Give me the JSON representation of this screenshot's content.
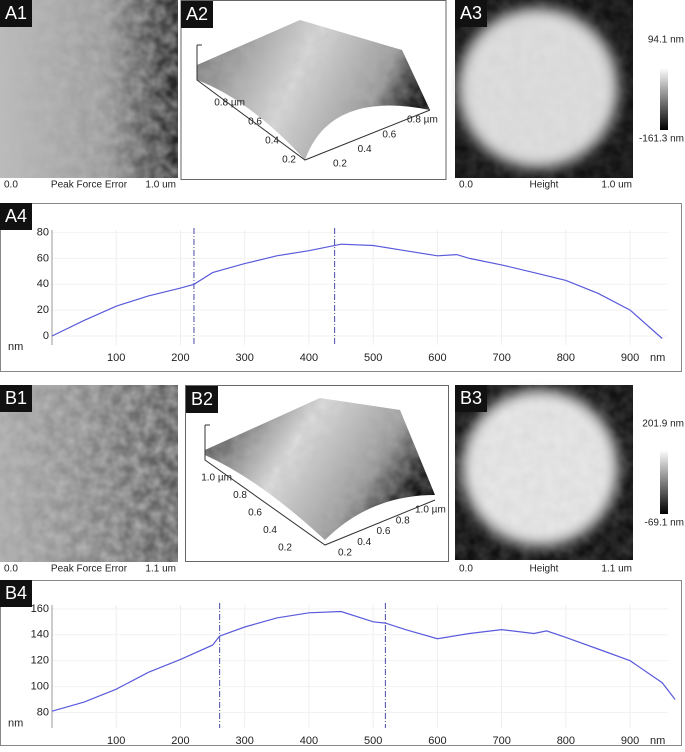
{
  "A1": {
    "label": "A1",
    "scale_start": "0.0",
    "channel": "Peak Force Error",
    "scale_end": "1.0 um"
  },
  "A2": {
    "label": "A2",
    "left_axis": [
      "0.8 µm",
      "0.6",
      "0.4",
      "0.2"
    ],
    "right_axis": [
      "0.8 µm",
      "0.6",
      "0.4",
      "0.2"
    ]
  },
  "A3": {
    "label": "A3",
    "scale_start": "0.0",
    "channel": "Height",
    "scale_end": "1.0 um",
    "color_max": "94.1 nm",
    "color_min": "-161.3 nm"
  },
  "B1": {
    "label": "B1",
    "scale_start": "0.0",
    "channel": "Peak Force Error",
    "scale_end": "1.1 um"
  },
  "B2": {
    "label": "B2",
    "left_axis": [
      "1.0 µm",
      "0.8",
      "0.6",
      "0.4",
      "0.2"
    ],
    "right_axis": [
      "1.0 µm",
      "0.8",
      "0.6",
      "0.4",
      "0.2"
    ]
  },
  "B3": {
    "label": "B3",
    "scale_start": "0.0",
    "channel": "Height",
    "scale_end": "1.1 um",
    "color_max": "201.9 nm",
    "color_min": "-69.1 nm"
  },
  "chart_data": [
    {
      "type": "line",
      "panel_label": "A4",
      "x_unit": "nm",
      "y_unit": "nm",
      "x": [
        0,
        50,
        100,
        150,
        200,
        221,
        250,
        300,
        350,
        400,
        450,
        500,
        550,
        600,
        630,
        650,
        700,
        750,
        800,
        850,
        900,
        950
      ],
      "series": [
        {
          "color": "#5a5adc",
          "values": [
            0,
            12,
            23,
            31,
            37,
            40,
            49,
            56,
            62,
            66,
            71,
            70,
            66,
            62,
            63,
            60,
            55,
            49,
            43,
            33,
            20,
            -2
          ]
        }
      ],
      "xlim": [
        0,
        959
      ],
      "ylim": [
        -7,
        82
      ],
      "xticks": [
        100,
        200,
        300,
        400,
        500,
        600,
        700,
        800,
        900
      ],
      "yticks": [
        0,
        20,
        40,
        60,
        80
      ],
      "cursors": [
        221,
        440
      ],
      "grid": true
    },
    {
      "type": "line",
      "panel_label": "B4",
      "x_unit": "nm",
      "y_unit": "nm",
      "x": [
        0,
        50,
        100,
        150,
        200,
        250,
        261,
        300,
        350,
        400,
        450,
        500,
        519,
        550,
        600,
        650,
        700,
        750,
        770,
        800,
        850,
        900,
        950,
        970
      ],
      "series": [
        {
          "color": "#5a5adc",
          "values": [
            81,
            88,
            98,
            111,
            121,
            132,
            139,
            146,
            153,
            157,
            158,
            150,
            149,
            144,
            137,
            141,
            144,
            141,
            143,
            138,
            129,
            120,
            103,
            90
          ]
        }
      ],
      "xlim": [
        0,
        959
      ],
      "ylim": [
        68,
        163
      ],
      "xticks": [
        100,
        200,
        300,
        400,
        500,
        600,
        700,
        800,
        900
      ],
      "yticks": [
        80,
        100,
        120,
        140,
        160
      ],
      "cursors": [
        261,
        519
      ],
      "grid": true
    }
  ]
}
